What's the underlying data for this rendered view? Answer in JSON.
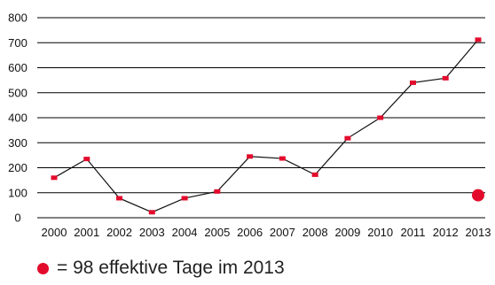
{
  "chart_data": {
    "type": "line",
    "categories": [
      "2000",
      "2001",
      "2002",
      "2003",
      "2004",
      "2005",
      "2006",
      "2007",
      "2008",
      "2009",
      "2010",
      "2011",
      "2012",
      "2013"
    ],
    "series": [
      {
        "values": [
          160,
          235,
          78,
          22,
          78,
          105,
          245,
          237,
          172,
          318,
          400,
          540,
          558,
          712
        ]
      }
    ],
    "highlight": {
      "category": "2013",
      "value": 90
    },
    "yticks": [
      0,
      100,
      200,
      300,
      400,
      500,
      600,
      700,
      800
    ],
    "ylim": [
      0,
      800
    ],
    "grid": "horizontal",
    "title": "",
    "xlabel": "",
    "ylabel": "",
    "colors": {
      "line": "#111111",
      "marker": "#e30b2c",
      "grid": "#000000"
    }
  },
  "legend": {
    "symbol_color": "#e30b2c",
    "text": "=  98 effektive Tage im 2013"
  }
}
